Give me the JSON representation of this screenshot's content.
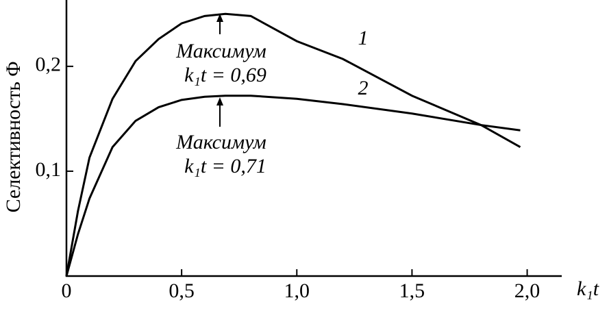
{
  "chart_data": {
    "type": "line",
    "y_label": "Селективность Φ",
    "x_label": "k₁t",
    "x": [
      0,
      0.05,
      0.1,
      0.2,
      0.3,
      0.4,
      0.5,
      0.6,
      0.69,
      0.8,
      1.0,
      1.2,
      1.5,
      1.8,
      1.97
    ],
    "series": [
      {
        "name": "1",
        "color": "#000000",
        "values": [
          0,
          0.062,
          0.113,
          0.169,
          0.205,
          0.226,
          0.241,
          0.248,
          0.25,
          0.248,
          0.224,
          0.207,
          0.172,
          0.144,
          0.123
        ]
      },
      {
        "name": "2",
        "color": "#000000",
        "values": [
          0,
          0.04,
          0.074,
          0.123,
          0.148,
          0.161,
          0.168,
          0.171,
          0.172,
          0.172,
          0.169,
          0.164,
          0.155,
          0.144,
          0.139
        ]
      }
    ],
    "annotations": [
      {
        "lines": [
          "Максимум",
          "k₁t = 0,69"
        ]
      },
      {
        "lines": [
          "Максимум",
          "k₁t = 0,71"
        ]
      }
    ],
    "xlim": [
      0,
      2.15
    ],
    "ylim": [
      0,
      0.26
    ],
    "xticks": [
      0,
      {
        "value": 0.5,
        "label": "0,5"
      },
      {
        "value": 1.0,
        "label": "1,0"
      },
      {
        "value": 1.5,
        "label": "1,5"
      },
      {
        "value": 2.0,
        "label": "2,0"
      }
    ],
    "yticks": [
      {
        "value": 0.1,
        "label": "0,1"
      },
      {
        "value": 0.2,
        "label": "0,2"
      }
    ],
    "grid": false
  }
}
